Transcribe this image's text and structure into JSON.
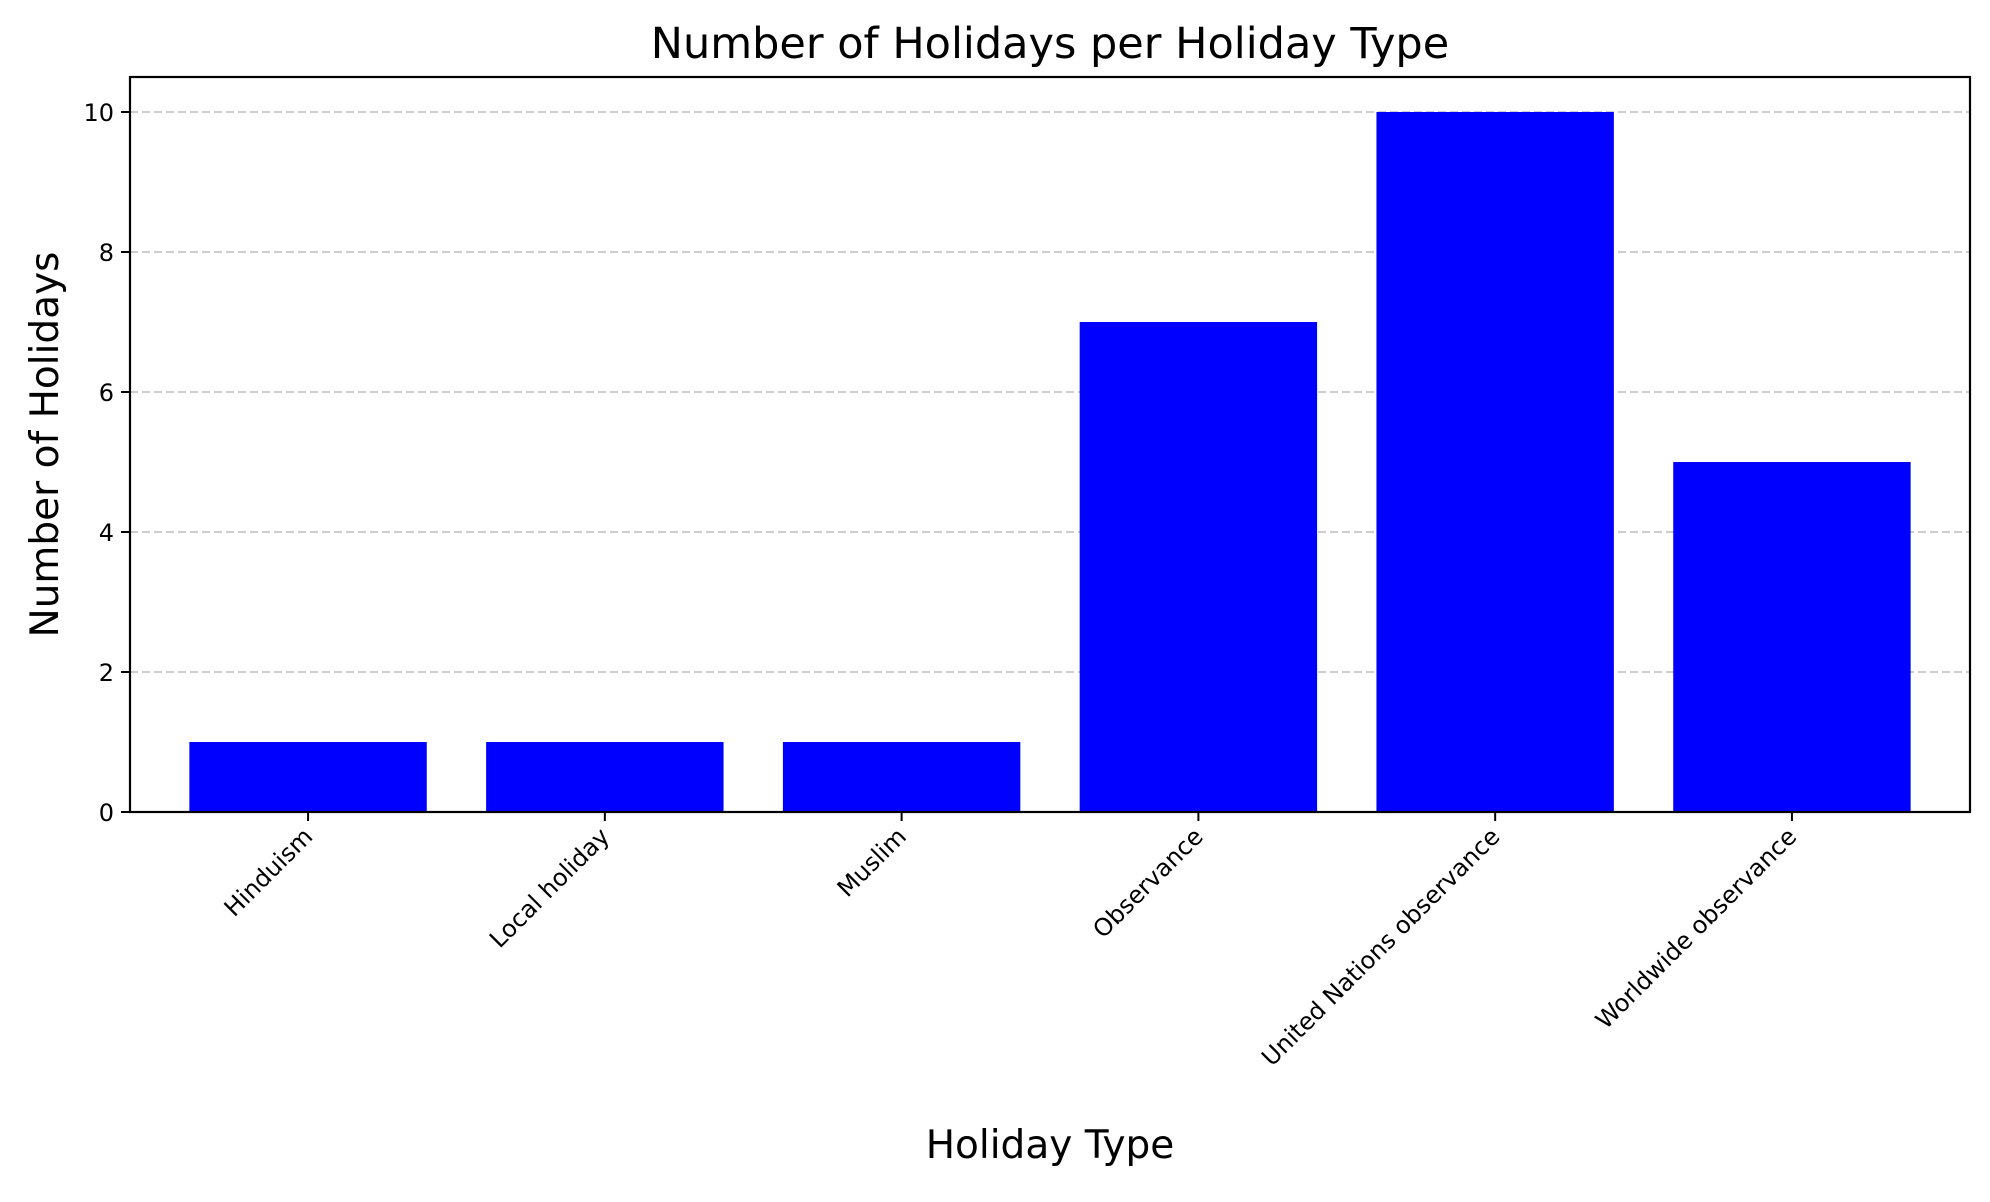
{
  "chart_data": {
    "type": "bar",
    "title": "Number of Holidays per Holiday Type",
    "xlabel": "Holiday Type",
    "ylabel": "Number of Holidays",
    "categories": [
      "Hinduism",
      "Local holiday",
      "Muslim",
      "Observance",
      "United Nations observance",
      "Worldwide observance"
    ],
    "values": [
      1,
      1,
      1,
      7,
      10,
      5
    ],
    "ylim": [
      0,
      10.5
    ],
    "yticks": [
      0,
      2,
      4,
      6,
      8,
      10
    ],
    "grid": "y-dashed",
    "bar_color": "#0000ff",
    "grid_color": "#bdbdbd",
    "legend": "none"
  }
}
